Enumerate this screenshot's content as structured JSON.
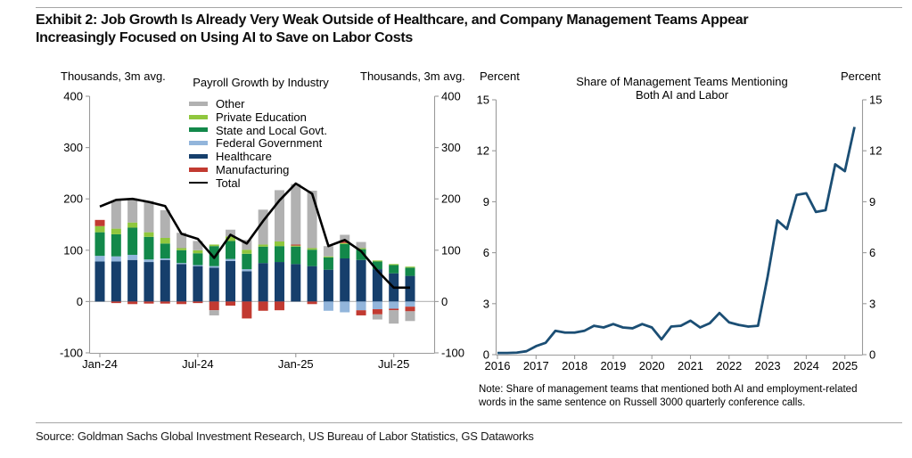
{
  "page": {
    "title_line1": "Exhibit 2: Job Growth Is Already Very Weak Outside of Healthcare, and Company Management Teams Appear",
    "title_line2": "Increasingly Focused on Using AI to Save on Labor Costs",
    "source": "Source: Goldman Sachs Global Investment Research, US Bureau of Labor Statistics, GS Dataworks"
  },
  "chart_data": [
    {
      "type": "bar",
      "stacked": true,
      "title": "Payroll Growth by Industry",
      "unit_label_left": "Thousands, 3m avg.",
      "unit_label_right": "Thousands, 3m avg.",
      "ylim": [
        -100,
        400
      ],
      "y_ticks": [
        400,
        300,
        200,
        100,
        0,
        -100
      ],
      "grid": false,
      "categories": [
        "Jan-24",
        "Feb-24",
        "Mar-24",
        "Apr-24",
        "May-24",
        "Jun-24",
        "Jul-24",
        "Aug-24",
        "Sep-24",
        "Oct-24",
        "Nov-24",
        "Dec-24",
        "Jan-25",
        "Feb-25",
        "Mar-25",
        "Apr-25",
        "May-25",
        "Jun-25",
        "Jul-25",
        "Aug-25"
      ],
      "x_tick_indices": [
        0,
        6,
        12,
        18
      ],
      "x_tick_labels": [
        "Jan-24",
        "Jul-24",
        "Jan-25",
        "Jul-25"
      ],
      "series": [
        {
          "name": "Other",
          "color": "#b1b1b1",
          "values": [
            0,
            55,
            47,
            61,
            54,
            30,
            18,
            -10,
            13,
            19,
            68,
            100,
            118,
            112,
            20,
            13,
            12,
            -10,
            -26,
            -19
          ]
        },
        {
          "name": "Private Education",
          "color": "#90c73e",
          "values": [
            12,
            11,
            10,
            9,
            11,
            4,
            6,
            3,
            9,
            8,
            4,
            9,
            2,
            3,
            2,
            2,
            2,
            2,
            2,
            2
          ]
        },
        {
          "name": "State and Local Govt.",
          "color": "#12884a",
          "values": [
            46,
            43,
            53,
            44,
            29,
            25,
            23,
            39,
            35,
            30,
            32,
            31,
            34,
            32,
            24,
            28,
            21,
            15,
            16,
            16
          ]
        },
        {
          "name": "Federal Government",
          "color": "#92b5db",
          "values": [
            11,
            10,
            10,
            5,
            3,
            2,
            2,
            3,
            4,
            4,
            0,
            0,
            0,
            0,
            -18,
            -21,
            -17,
            -15,
            -14,
            -10
          ]
        },
        {
          "name": "Healthcare",
          "color": "#163f6c",
          "values": [
            78,
            78,
            81,
            77,
            81,
            73,
            69,
            66,
            79,
            59,
            75,
            77,
            73,
            69,
            62,
            84,
            81,
            63,
            55,
            50
          ]
        },
        {
          "name": "Manufacturing",
          "color": "#c23a31",
          "values": [
            12,
            -3,
            -5,
            -4,
            -4,
            -5,
            -3,
            -17,
            -8,
            -33,
            -18,
            -17,
            2,
            -5,
            0,
            3,
            -10,
            -10,
            -3,
            -9
          ]
        }
      ],
      "stack_order": [
        "Healthcare",
        "Federal Government",
        "State and Local Govt.",
        "Private Education",
        "Manufacturing",
        "Other"
      ],
      "line_series": {
        "name": "Total",
        "color": "#000000",
        "values": [
          185,
          198,
          200,
          194,
          186,
          132,
          122,
          85,
          130,
          113,
          157,
          197,
          230,
          210,
          108,
          120,
          98,
          60,
          27,
          27
        ]
      }
    },
    {
      "type": "line",
      "title_line1": "Share of Management Teams Mentioning",
      "title_line2": "Both AI and Labor",
      "unit_label_left": "Percent",
      "unit_label_right": "Percent",
      "ylim": [
        0,
        15
      ],
      "y_ticks": [
        0,
        3,
        6,
        9,
        12,
        15
      ],
      "x_ticks": [
        2016,
        2017,
        2018,
        2019,
        2020,
        2021,
        2022,
        2023,
        2024,
        2025
      ],
      "xlim": [
        2016,
        2025.5
      ],
      "grid": false,
      "color": "#1b4e74",
      "quarters": [
        "2016 Q1",
        "2016 Q2",
        "2016 Q3",
        "2016 Q4",
        "2017 Q1",
        "2017 Q2",
        "2017 Q3",
        "2017 Q4",
        "2018 Q1",
        "2018 Q2",
        "2018 Q3",
        "2018 Q4",
        "2019 Q1",
        "2019 Q2",
        "2019 Q3",
        "2019 Q4",
        "2020 Q1",
        "2020 Q2",
        "2020 Q3",
        "2020 Q4",
        "2021 Q1",
        "2021 Q2",
        "2021 Q3",
        "2021 Q4",
        "2022 Q1",
        "2022 Q2",
        "2022 Q3",
        "2022 Q4",
        "2023 Q1",
        "2023 Q2",
        "2023 Q3",
        "2023 Q4",
        "2024 Q1",
        "2024 Q2",
        "2024 Q3",
        "2024 Q4",
        "2025 Q1",
        "2025 Q2"
      ],
      "values": [
        0.1,
        0.1,
        0.12,
        0.2,
        0.5,
        0.7,
        1.4,
        1.3,
        1.3,
        1.4,
        1.7,
        1.6,
        1.8,
        1.6,
        1.55,
        1.8,
        1.6,
        0.9,
        1.65,
        1.7,
        2.0,
        1.6,
        1.85,
        2.45,
        1.9,
        1.75,
        1.65,
        1.7,
        4.6,
        7.9,
        7.4,
        9.4,
        9.5,
        8.4,
        8.5,
        11.2,
        10.8,
        13.4
      ],
      "note_line1": "Note: Share of management teams that mentioned both AI and employment-related",
      "note_line2": "words in the same sentence on Russell 3000 quarterly conference calls."
    }
  ]
}
